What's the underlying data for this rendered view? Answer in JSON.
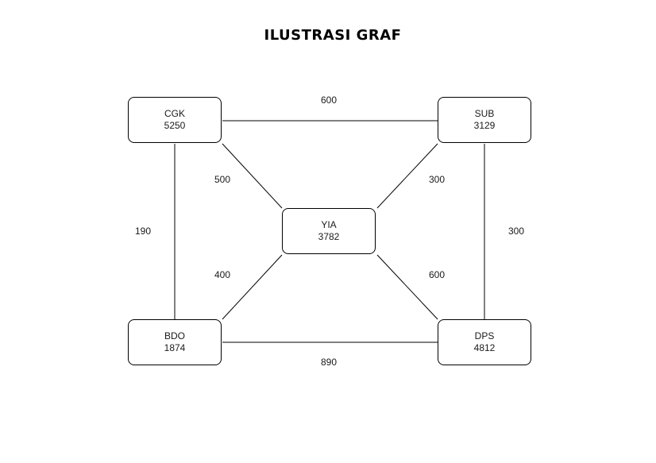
{
  "diagram": {
    "title": "ILUSTRASI GRAF",
    "nodes": {
      "cgk": {
        "name": "CGK",
        "value": "5250"
      },
      "sub": {
        "name": "SUB",
        "value": "3129"
      },
      "yia": {
        "name": "YIA",
        "value": "3782"
      },
      "bdo": {
        "name": "BDO",
        "value": "1874"
      },
      "dps": {
        "name": "DPS",
        "value": "4812"
      }
    },
    "edges": {
      "cgk_sub": "600",
      "cgk_yia": "500",
      "sub_yia": "300",
      "cgk_bdo": "190",
      "sub_dps": "300",
      "bdo_yia": "400",
      "dps_yia": "600",
      "bdo_dps": "890"
    },
    "colors": {
      "stroke": "#000000",
      "node_fill": "#ffffff",
      "text": "#1a1a1a"
    }
  }
}
